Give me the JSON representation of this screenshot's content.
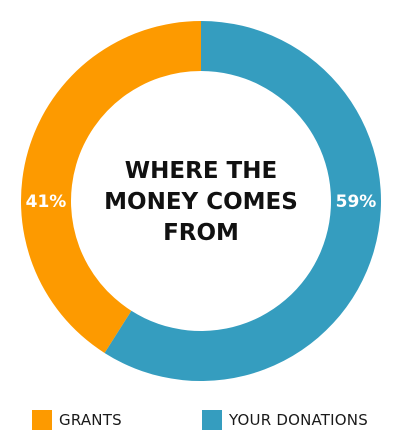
{
  "chart_data": {
    "type": "pie",
    "title": "WHERE THE MONEY COMES FROM",
    "title_lines": [
      "WHERE THE",
      "MONEY COMES",
      "FROM"
    ],
    "donut": true,
    "categories": [
      "YOUR DONATIONS",
      "GRANTS"
    ],
    "values": [
      59,
      41
    ],
    "data_labels": [
      "59%",
      "41%"
    ],
    "colors": [
      "#359dbf",
      "#fd9a00"
    ],
    "legend": "bottom",
    "legend_entries": [
      {
        "label": "GRANTS",
        "color": "#fd9a00"
      },
      {
        "label": "YOUR DONATIONS",
        "color": "#359dbf"
      }
    ]
  }
}
